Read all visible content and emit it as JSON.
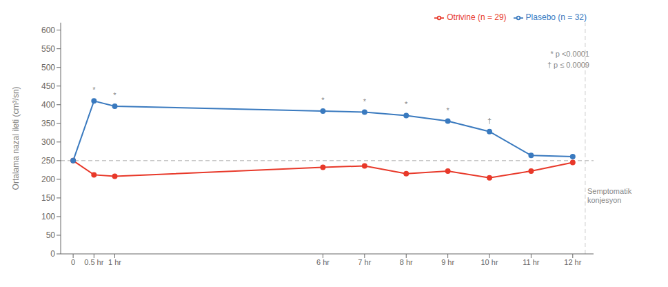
{
  "chart_data": {
    "type": "line",
    "ylabel": "Ortalama nazal ileti (cm³/sn)",
    "x": [
      0,
      0.5,
      1,
      6,
      7,
      8,
      9,
      10,
      11,
      12
    ],
    "series": [
      {
        "name": "Otrivine (n = 29)",
        "color": "#e8392a",
        "marker": "circle",
        "values": [
          250,
          212,
          208,
          232,
          236,
          215,
          222,
          204,
          222,
          245
        ]
      },
      {
        "name": "Plasebo (n = 32)",
        "color": "#3a7abf",
        "marker": "circle",
        "values": [
          250,
          410,
          396,
          383,
          380,
          371,
          356,
          328,
          264,
          261
        ]
      }
    ],
    "xlim": [
      -0.3,
      12.5
    ],
    "xticks": [
      0,
      {
        "value": 0.5,
        "label": "0.5 hr"
      },
      {
        "value": 1,
        "label": "1 hr"
      },
      {
        "value": 6,
        "label": "6 hr"
      },
      {
        "value": 7,
        "label": "7 hr"
      },
      {
        "value": 8,
        "label": "8 hr"
      },
      {
        "value": 9,
        "label": "9 hr"
      },
      {
        "value": 10,
        "label": "10 hr"
      },
      {
        "value": 11,
        "label": "11 hr"
      },
      {
        "value": 12,
        "label": "12 hr"
      }
    ],
    "ylim": [
      0,
      620
    ],
    "yticks": [
      0,
      50,
      100,
      150,
      200,
      250,
      300,
      350,
      400,
      450,
      500,
      550,
      600
    ],
    "grid": false,
    "legend": "upper right",
    "reference_lines": [
      {
        "y": 250,
        "color": "#aaaaaa",
        "line_style": "dashed"
      },
      {
        "x": 12.3,
        "color": "#cccccc",
        "line_style": "dashed"
      }
    ],
    "annotations": [
      {
        "text": "*",
        "x": 0.5,
        "y": 410
      },
      {
        "text": "*",
        "x": 1,
        "y": 396
      },
      {
        "text": "*",
        "x": 6,
        "y": 383
      },
      {
        "text": "*",
        "x": 7,
        "y": 380
      },
      {
        "text": "*",
        "x": 8,
        "y": 371
      },
      {
        "text": "*",
        "x": 9,
        "y": 356
      },
      {
        "text": "†",
        "x": 10,
        "y": 328
      },
      {
        "text": "Semptomatik\nkonjesyon",
        "x": 12.35,
        "y": 155
      },
      {
        "text": "* p <0.0001"
      },
      {
        "text": "† p ≤ 0.0009"
      }
    ]
  }
}
